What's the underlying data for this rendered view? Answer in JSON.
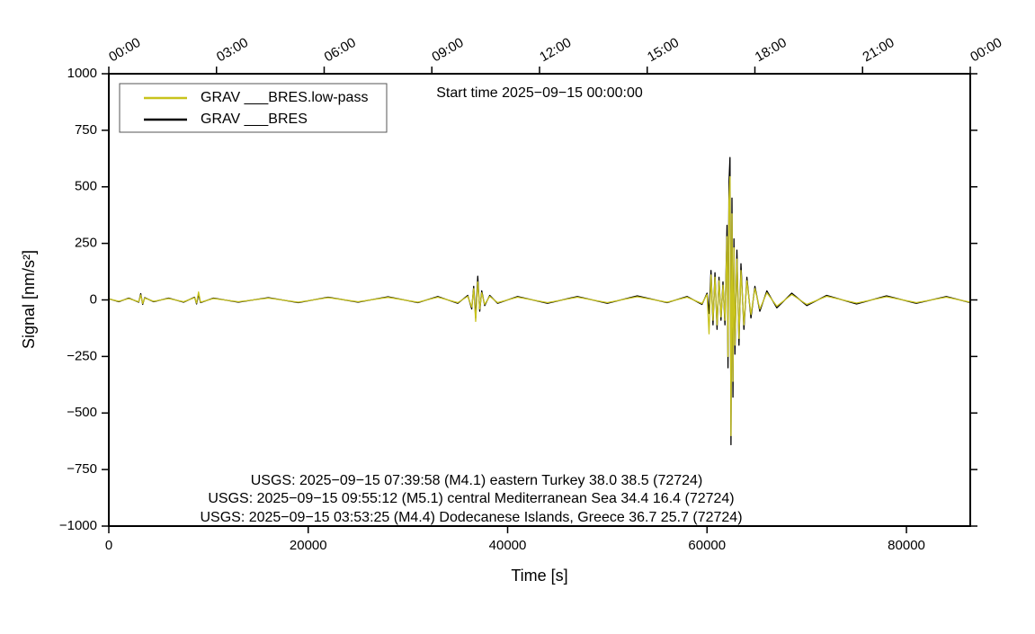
{
  "chart_data": {
    "type": "line",
    "title": "Start time 2025−09−15 00:00:00",
    "xlabel": "Time [s]",
    "ylabel": "Signal [nm/s²]",
    "annotations": [
      "USGS: 2025−09−15 07:39:58 (M4.1) eastern Turkey 38.0 38.5 (72724)",
      "USGS: 2025−09−15 09:55:12 (M5.1) central Mediterranean Sea 34.4 16.4 (72724)",
      "USGS: 2025−09−15 03:53:25 (M4.4) Dodecanese Islands, Greece 36.7 25.7 (72724)"
    ],
    "legend": "upper left",
    "grid": false,
    "xlim": [
      0,
      86400
    ],
    "ylim": [
      -1000,
      1000
    ],
    "xticks": [
      0,
      20000,
      40000,
      60000,
      80000
    ],
    "x2ticks": [
      {
        "value": 0,
        "label": "00:00"
      },
      {
        "value": 10800,
        "label": "03:00"
      },
      {
        "value": 21600,
        "label": "06:00"
      },
      {
        "value": 32400,
        "label": "09:00"
      },
      {
        "value": 43200,
        "label": "12:00"
      },
      {
        "value": 54000,
        "label": "15:00"
      },
      {
        "value": 64800,
        "label": "18:00"
      },
      {
        "value": 75600,
        "label": "21:00"
      },
      {
        "value": 86400,
        "label": "00:00"
      }
    ],
    "yticks": [
      1000,
      750,
      500,
      250,
      0,
      {
        "value": -250,
        "label": "−250"
      },
      {
        "value": -500,
        "label": "−500"
      },
      {
        "value": -750,
        "label": "−750"
      },
      {
        "value": -1000,
        "label": "−1000"
      }
    ],
    "x": [
      0,
      1000,
      2000,
      3000,
      3200,
      3400,
      3600,
      4500,
      6000,
      7500,
      8600,
      8800,
      9000,
      9200,
      10500,
      13000,
      16000,
      19000,
      22000,
      25000,
      28000,
      31000,
      33000,
      35000,
      36000,
      36400,
      36600,
      36800,
      37000,
      37200,
      37400,
      37700,
      38200,
      39000,
      41000,
      44000,
      47000,
      50000,
      53000,
      56000,
      58000,
      59500,
      60000,
      60200,
      60400,
      60600,
      60800,
      61000,
      61200,
      61400,
      61600,
      61800,
      62000,
      62100,
      62200,
      62300,
      62400,
      62500,
      62600,
      62700,
      62800,
      63000,
      63200,
      63400,
      63700,
      64000,
      64400,
      64800,
      65300,
      66000,
      67000,
      68500,
      70000,
      72000,
      75000,
      78000,
      81000,
      84000,
      86400
    ],
    "series": [
      {
        "name": "GRAV ___BRES",
        "color": "#000000",
        "values": [
          5,
          -8,
          8,
          -10,
          28,
          -20,
          10,
          -8,
          8,
          -10,
          12,
          -18,
          25,
          -12,
          8,
          -10,
          10,
          -12,
          12,
          -10,
          14,
          -12,
          15,
          -15,
          20,
          -40,
          60,
          -80,
          105,
          -50,
          40,
          -25,
          20,
          -15,
          15,
          -15,
          15,
          -15,
          18,
          -12,
          15,
          -20,
          30,
          -60,
          130,
          -110,
          120,
          -130,
          100,
          -90,
          80,
          -110,
          330,
          -300,
          520,
          630,
          -640,
          450,
          -430,
          270,
          -240,
          220,
          -200,
          160,
          -130,
          100,
          -80,
          60,
          -50,
          40,
          -35,
          30,
          -25,
          20,
          -18,
          18,
          -15,
          15,
          -12
        ]
      },
      {
        "name": "GRAV ___BRES.low-pass",
        "color": "#c8c31c",
        "values": [
          4,
          -6,
          6,
          -8,
          22,
          -16,
          8,
          -6,
          6,
          -8,
          10,
          -14,
          35,
          -10,
          6,
          -8,
          8,
          -10,
          10,
          -8,
          11,
          -10,
          12,
          -12,
          16,
          -32,
          50,
          -95,
          80,
          -40,
          32,
          -20,
          16,
          -12,
          12,
          -12,
          12,
          -12,
          14,
          -10,
          12,
          -16,
          24,
          -150,
          110,
          -90,
          100,
          -110,
          85,
          -75,
          65,
          -90,
          280,
          -250,
          440,
          545,
          -600,
          380,
          -360,
          230,
          -200,
          180,
          -170,
          130,
          -110,
          85,
          -65,
          50,
          -40,
          32,
          -28,
          24,
          -20,
          16,
          -14,
          14,
          -12,
          12,
          -10
        ]
      }
    ]
  }
}
